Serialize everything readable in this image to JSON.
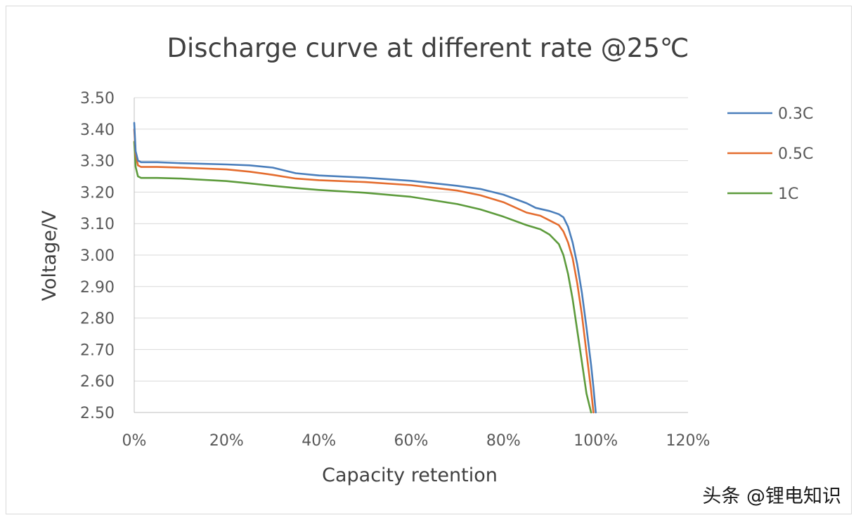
{
  "chart_data": {
    "type": "line",
    "title": "Discharge curve at different rate @25℃",
    "xlabel": "Capacity retention",
    "ylabel": "Voltage/V",
    "xlim": [
      0,
      120
    ],
    "ylim": [
      2.5,
      3.5
    ],
    "x_ticks": [
      "0%",
      "20%",
      "40%",
      "60%",
      "80%",
      "100%",
      "120%"
    ],
    "y_ticks": [
      "3.50",
      "3.40",
      "3.30",
      "3.20",
      "3.10",
      "3.00",
      "2.90",
      "2.80",
      "2.70",
      "2.60",
      "2.50"
    ],
    "grid": true,
    "legend_position": "right",
    "series": [
      {
        "name": "0.3C",
        "color": "#4a7ebb",
        "x": [
          0,
          0.3,
          0.8,
          1.5,
          5,
          10,
          20,
          25,
          30,
          35,
          40,
          50,
          60,
          70,
          75,
          80,
          85,
          87,
          90,
          92,
          93,
          94,
          95,
          96,
          97,
          98,
          99,
          99.5,
          100
        ],
        "y": [
          3.42,
          3.33,
          3.3,
          3.295,
          3.295,
          3.292,
          3.288,
          3.285,
          3.278,
          3.26,
          3.253,
          3.246,
          3.236,
          3.22,
          3.21,
          3.192,
          3.165,
          3.15,
          3.14,
          3.13,
          3.12,
          3.09,
          3.04,
          2.97,
          2.88,
          2.77,
          2.65,
          2.58,
          2.5
        ]
      },
      {
        "name": "0.5C",
        "color": "#e46c2e",
        "x": [
          0,
          0.3,
          0.8,
          1.5,
          5,
          10,
          20,
          25,
          30,
          35,
          40,
          50,
          60,
          70,
          75,
          80,
          85,
          88,
          90,
          92,
          93,
          94,
          95,
          96,
          97,
          98,
          99,
          99.5
        ],
        "y": [
          3.4,
          3.32,
          3.285,
          3.28,
          3.28,
          3.278,
          3.272,
          3.265,
          3.255,
          3.243,
          3.238,
          3.232,
          3.222,
          3.205,
          3.19,
          3.168,
          3.135,
          3.125,
          3.11,
          3.095,
          3.075,
          3.04,
          2.99,
          2.91,
          2.81,
          2.69,
          2.57,
          2.5
        ]
      },
      {
        "name": "1C",
        "color": "#5d9b3c",
        "x": [
          0,
          0.3,
          0.8,
          1.5,
          5,
          10,
          20,
          25,
          30,
          35,
          40,
          50,
          60,
          70,
          75,
          80,
          85,
          88,
          90,
          92,
          93,
          94,
          95,
          96,
          97,
          98,
          99
        ],
        "y": [
          3.36,
          3.28,
          3.25,
          3.245,
          3.245,
          3.243,
          3.235,
          3.228,
          3.22,
          3.213,
          3.207,
          3.198,
          3.185,
          3.162,
          3.145,
          3.122,
          3.095,
          3.082,
          3.065,
          3.035,
          3.0,
          2.94,
          2.86,
          2.76,
          2.66,
          2.56,
          2.5
        ]
      }
    ]
  },
  "watermark": {
    "text": "头条 @锂电知识"
  }
}
